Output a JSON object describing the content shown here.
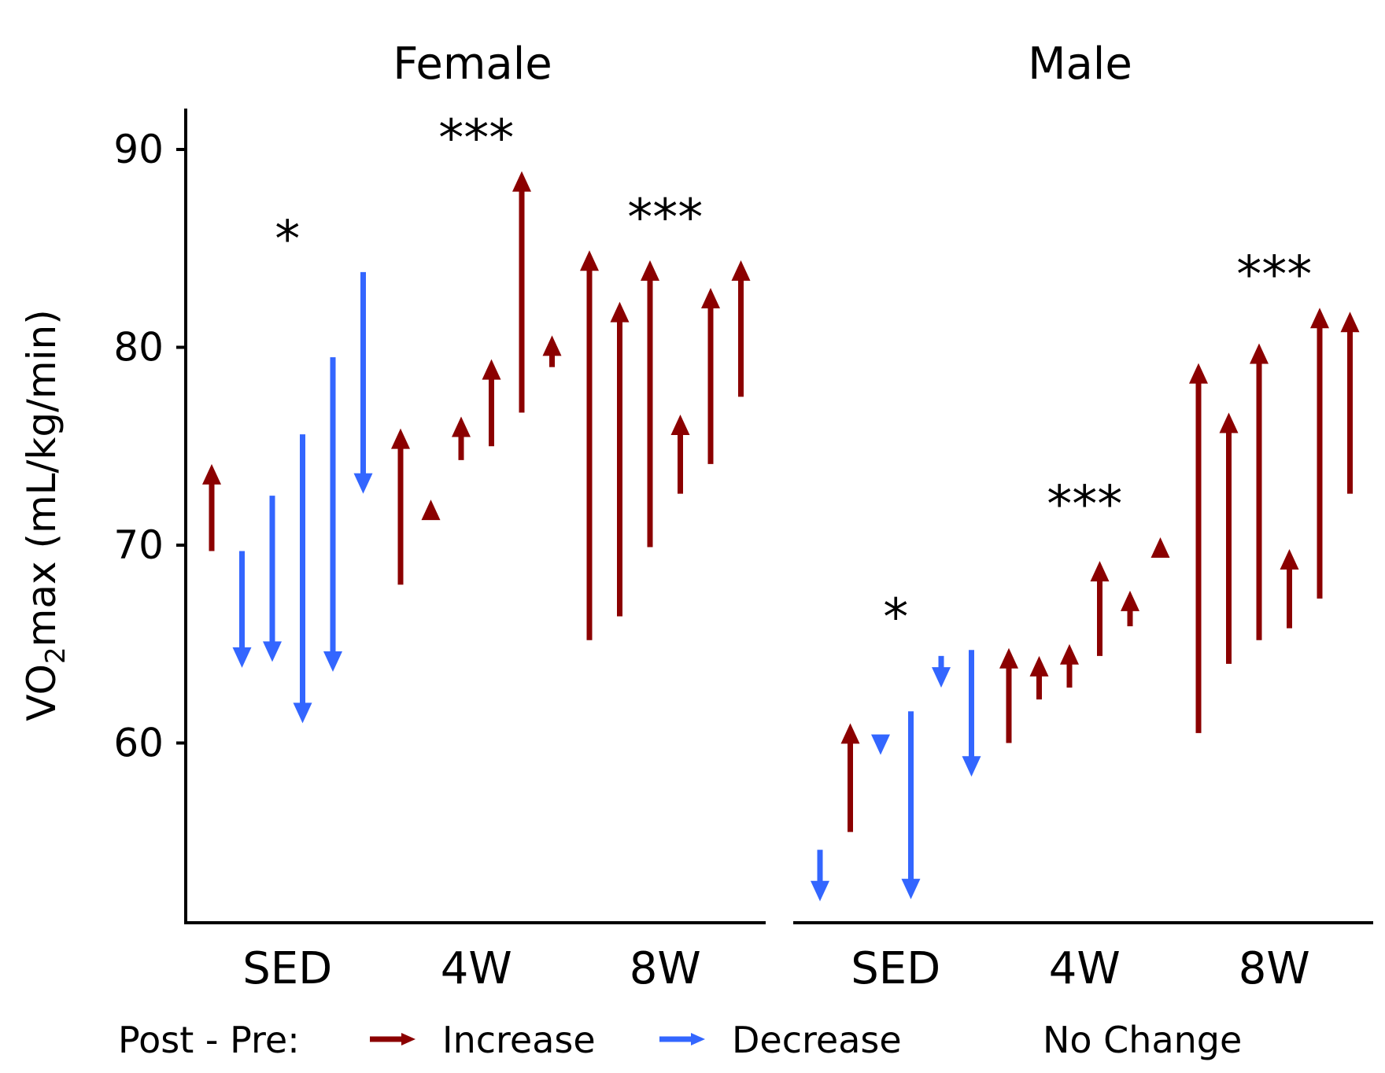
{
  "chart_data": {
    "type": "arrow",
    "ylabel_main": "VO",
    "ylabel_sub": "2",
    "ylabel_rest": "max (mL/kg/min)",
    "y_ticks": [
      60,
      70,
      80,
      90
    ],
    "y_range": [
      51,
      92
    ],
    "groups": [
      "SED",
      "4W",
      "8W"
    ],
    "colors": {
      "increase": "#8B0000",
      "decrease": "#3366FF"
    },
    "legend": {
      "title": "Post - Pre:",
      "items": [
        {
          "label": "Increase",
          "key": "increase"
        },
        {
          "label": "Decrease",
          "key": "decrease"
        },
        {
          "label": "No Change",
          "key": "nochange"
        }
      ]
    },
    "panels": [
      {
        "title": "Female",
        "group_labels": [
          "SED",
          "4W",
          "8W"
        ],
        "significance": [
          "*",
          "***",
          "***"
        ],
        "groups": [
          {
            "label": "SED",
            "arrows": [
              [
                69.7,
                74.1
              ],
              [
                69.7,
                63.8
              ],
              [
                72.5,
                64.1
              ],
              [
                75.6,
                61.0
              ],
              [
                79.5,
                63.6
              ],
              [
                83.8,
                72.6
              ]
            ]
          },
          {
            "label": "4W",
            "arrows": [
              [
                68.0,
                75.9
              ],
              [
                71.5,
                72.3
              ],
              [
                74.3,
                76.5
              ],
              [
                75.0,
                79.4
              ],
              [
                76.7,
                88.9
              ],
              [
                79.0,
                80.6
              ]
            ]
          },
          {
            "label": "8W",
            "arrows": [
              [
                65.2,
                84.9
              ],
              [
                66.4,
                82.3
              ],
              [
                69.9,
                84.4
              ],
              [
                72.6,
                76.6
              ],
              [
                74.1,
                83.0
              ],
              [
                77.5,
                84.4
              ]
            ]
          }
        ]
      },
      {
        "title": "Male",
        "group_labels": [
          "SED",
          "4W",
          "8W"
        ],
        "significance": [
          "*",
          "***",
          "***"
        ],
        "groups": [
          {
            "label": "SED",
            "arrows": [
              [
                54.6,
                52.0
              ],
              [
                55.5,
                61.0
              ],
              [
                60.2,
                59.4
              ],
              [
                61.6,
                52.1
              ],
              [
                64.4,
                62.8
              ],
              [
                64.7,
                58.3
              ]
            ]
          },
          {
            "label": "4W",
            "arrows": [
              [
                60.0,
                64.8
              ],
              [
                62.2,
                64.4
              ],
              [
                62.8,
                65.0
              ],
              [
                64.4,
                69.2
              ],
              [
                65.9,
                67.7
              ],
              [
                69.6,
                70.4
              ]
            ]
          },
          {
            "label": "8W",
            "arrows": [
              [
                60.5,
                79.2
              ],
              [
                64.0,
                76.7
              ],
              [
                65.2,
                80.2
              ],
              [
                65.8,
                69.8
              ],
              [
                67.3,
                82.0
              ],
              [
                72.6,
                81.8
              ]
            ]
          }
        ]
      }
    ]
  }
}
